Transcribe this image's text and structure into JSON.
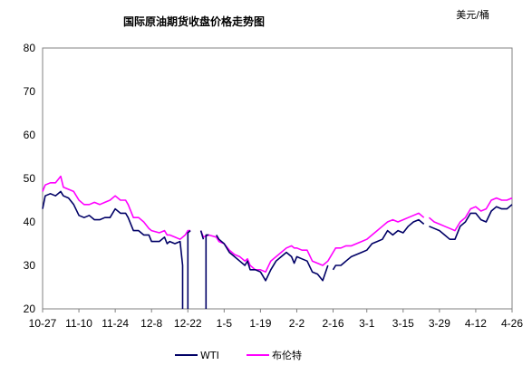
{
  "chart_data": {
    "type": "line",
    "title": "国际原油期货收盘价格走势图",
    "unit_label": "美元/桶",
    "ylim": [
      20,
      80
    ],
    "yticks": [
      20,
      30,
      40,
      50,
      60,
      70,
      80
    ],
    "xlim": [
      0,
      181
    ],
    "x_ticks": [
      {
        "label": "10-27",
        "x": 0
      },
      {
        "label": "11-10",
        "x": 14
      },
      {
        "label": "11-24",
        "x": 28
      },
      {
        "label": "12-8",
        "x": 42
      },
      {
        "label": "12-22",
        "x": 56
      },
      {
        "label": "1-5",
        "x": 70
      },
      {
        "label": "1-19",
        "x": 84
      },
      {
        "label": "2-2",
        "x": 98
      },
      {
        "label": "2-16",
        "x": 112
      },
      {
        "label": "3-1",
        "x": 125
      },
      {
        "label": "3-15",
        "x": 139
      },
      {
        "label": "3-29",
        "x": 153
      },
      {
        "label": "4-12",
        "x": 167
      },
      {
        "label": "4-26",
        "x": 181
      }
    ],
    "series": [
      {
        "name": "WTI",
        "color": "#000066",
        "segments": [
          [
            [
              0,
              43
            ],
            [
              1,
              46
            ],
            [
              3,
              46.5
            ],
            [
              5,
              46
            ],
            [
              7,
              47
            ],
            [
              8,
              46
            ],
            [
              10,
              45.5
            ],
            [
              12,
              44
            ],
            [
              14,
              41.5
            ],
            [
              16,
              41
            ],
            [
              18,
              41.5
            ],
            [
              20,
              40.5
            ],
            [
              22,
              40.5
            ],
            [
              24,
              41
            ],
            [
              26,
              41
            ],
            [
              28,
              43
            ],
            [
              30,
              42
            ],
            [
              32,
              42
            ],
            [
              33,
              41
            ],
            [
              35,
              38
            ],
            [
              37,
              38
            ],
            [
              39,
              37
            ],
            [
              41,
              37
            ],
            [
              42,
              35.5
            ],
            [
              45,
              35.5
            ],
            [
              47,
              36.5
            ],
            [
              48,
              35
            ],
            [
              49,
              35.5
            ],
            [
              51,
              35
            ],
            [
              53,
              35.5
            ],
            [
              54,
              30
            ],
            [
              54,
              20
            ]
          ],
          [
            [
              56,
              20
            ],
            [
              56,
              37.5
            ],
            [
              57,
              38
            ]
          ],
          [
            [
              61,
              38
            ],
            [
              62,
              36
            ]
          ],
          [
            [
              63,
              20
            ],
            [
              63,
              37
            ],
            [
              64,
              37
            ]
          ],
          [
            [
              67,
              37
            ],
            [
              68,
              36
            ],
            [
              70,
              35
            ],
            [
              72,
              33
            ],
            [
              74,
              32
            ],
            [
              76,
              31
            ],
            [
              78,
              30
            ],
            [
              79,
              31
            ],
            [
              80,
              29
            ],
            [
              82,
              29
            ],
            [
              84,
              28.5
            ],
            [
              86,
              26.5
            ],
            [
              88,
              29
            ],
            [
              90,
              31
            ],
            [
              92,
              32
            ],
            [
              94,
              33
            ],
            [
              96,
              32
            ],
            [
              97,
              30.5
            ],
            [
              98,
              32
            ],
            [
              100,
              31.5
            ],
            [
              102,
              31
            ],
            [
              104,
              28.5
            ],
            [
              106,
              28
            ],
            [
              108,
              26.5
            ],
            [
              110,
              30
            ]
          ],
          [
            [
              112,
              29
            ],
            [
              113,
              30
            ],
            [
              115,
              30
            ],
            [
              117,
              31
            ],
            [
              119,
              32
            ],
            [
              121,
              32.5
            ],
            [
              123,
              33
            ],
            [
              125,
              33.5
            ],
            [
              127,
              35
            ],
            [
              129,
              35.5
            ],
            [
              131,
              36
            ],
            [
              133,
              38
            ],
            [
              135,
              37
            ],
            [
              137,
              38
            ],
            [
              139,
              37.5
            ],
            [
              141,
              39
            ],
            [
              143,
              40
            ],
            [
              145,
              40.5
            ],
            [
              147,
              39.5
            ]
          ],
          [
            [
              149,
              39
            ],
            [
              151,
              38.5
            ],
            [
              153,
              38
            ],
            [
              155,
              37
            ],
            [
              157,
              36
            ],
            [
              159,
              36
            ],
            [
              161,
              39
            ],
            [
              163,
              40
            ],
            [
              165,
              42
            ],
            [
              167,
              42
            ],
            [
              169,
              40.5
            ],
            [
              171,
              40
            ],
            [
              173,
              42.5
            ],
            [
              175,
              43.5
            ],
            [
              177,
              43
            ],
            [
              179,
              43
            ],
            [
              181,
              44
            ]
          ]
        ]
      },
      {
        "name": "布伦特",
        "color": "#FF00FF",
        "segments": [
          [
            [
              0,
              47
            ],
            [
              1,
              48.5
            ],
            [
              3,
              49
            ],
            [
              5,
              49
            ],
            [
              7,
              50.5
            ],
            [
              8,
              48
            ],
            [
              10,
              47.5
            ],
            [
              12,
              47
            ],
            [
              14,
              45
            ],
            [
              16,
              44
            ],
            [
              18,
              44
            ],
            [
              20,
              44.5
            ],
            [
              22,
              44
            ],
            [
              24,
              44.5
            ],
            [
              26,
              45
            ],
            [
              28,
              46
            ],
            [
              30,
              45
            ],
            [
              32,
              45
            ],
            [
              33,
              44
            ],
            [
              35,
              41
            ],
            [
              37,
              41
            ],
            [
              39,
              40
            ],
            [
              41,
              38.5
            ],
            [
              42,
              38
            ],
            [
              45,
              37.5
            ],
            [
              47,
              38
            ],
            [
              48,
              37
            ],
            [
              49,
              37
            ],
            [
              51,
              36.5
            ],
            [
              53,
              36
            ],
            [
              55,
              37
            ],
            [
              56,
              38
            ],
            [
              57,
              38
            ]
          ],
          [
            [
              61,
              38
            ],
            [
              62,
              36.5
            ],
            [
              64,
              37
            ],
            [
              67,
              36.5
            ],
            [
              68,
              35.5
            ],
            [
              70,
              35
            ],
            [
              72,
              33.5
            ],
            [
              74,
              32.5
            ],
            [
              76,
              32
            ],
            [
              78,
              31
            ],
            [
              79,
              31.5
            ],
            [
              80,
              30
            ],
            [
              82,
              29
            ],
            [
              84,
              29
            ],
            [
              86,
              28.5
            ],
            [
              88,
              31
            ],
            [
              90,
              32
            ],
            [
              92,
              33
            ],
            [
              94,
              34
            ],
            [
              96,
              34.5
            ],
            [
              97,
              34
            ],
            [
              98,
              34
            ],
            [
              100,
              33.5
            ],
            [
              102,
              33.5
            ],
            [
              104,
              31
            ],
            [
              106,
              30.5
            ],
            [
              108,
              30
            ],
            [
              110,
              31
            ],
            [
              112,
              33
            ],
            [
              113,
              34
            ],
            [
              115,
              34
            ],
            [
              117,
              34.5
            ],
            [
              119,
              34.5
            ],
            [
              121,
              35
            ],
            [
              123,
              35.5
            ],
            [
              125,
              36
            ],
            [
              127,
              37
            ],
            [
              129,
              38
            ],
            [
              131,
              39
            ],
            [
              133,
              40
            ],
            [
              135,
              40.5
            ],
            [
              137,
              40
            ],
            [
              139,
              40.5
            ],
            [
              141,
              41
            ],
            [
              143,
              41.5
            ],
            [
              145,
              42
            ],
            [
              147,
              41
            ]
          ],
          [
            [
              149,
              41
            ],
            [
              151,
              40
            ],
            [
              153,
              39.5
            ],
            [
              155,
              39
            ],
            [
              157,
              38.5
            ],
            [
              159,
              38
            ],
            [
              161,
              40
            ],
            [
              163,
              41
            ],
            [
              165,
              43
            ],
            [
              167,
              43.5
            ],
            [
              169,
              42.5
            ],
            [
              171,
              43
            ],
            [
              173,
              45
            ],
            [
              175,
              45.5
            ],
            [
              177,
              45
            ],
            [
              179,
              45
            ],
            [
              181,
              45.5
            ]
          ]
        ]
      }
    ]
  }
}
